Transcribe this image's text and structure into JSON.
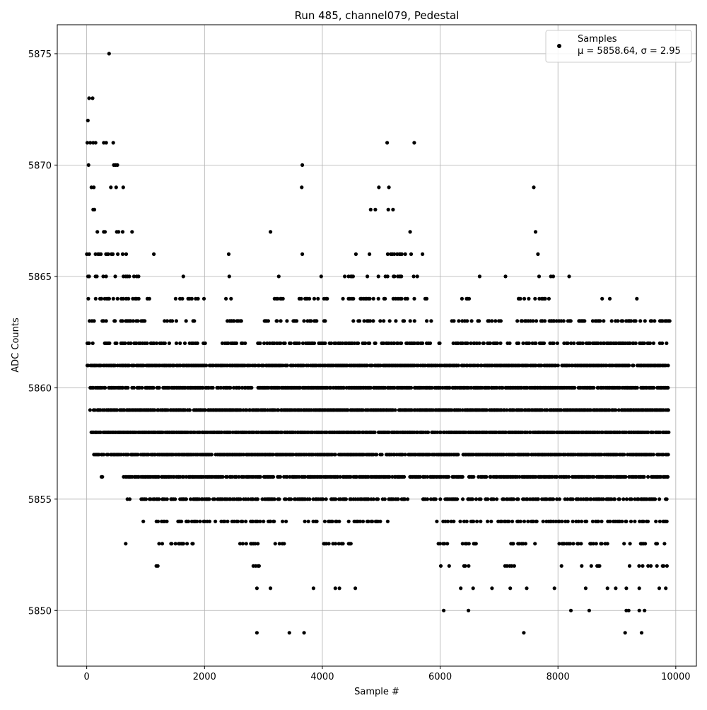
{
  "chart_data": {
    "type": "scatter",
    "title": "Run 485, channel079, Pedestal",
    "xlabel": "Sample #",
    "ylabel": "ADC Counts",
    "xlim": [
      -500,
      10350
    ],
    "ylim": [
      5847.5,
      5876.3
    ],
    "xticks": [
      0,
      2000,
      4000,
      6000,
      8000,
      10000
    ],
    "yticks": [
      5850,
      5855,
      5860,
      5865,
      5870,
      5875
    ],
    "grid": true,
    "legend": {
      "position": "top-right",
      "entries": [
        {
          "line1": "Samples",
          "line2": "μ = 5858.64, σ = 2.95"
        }
      ]
    },
    "marker_color": "#000000",
    "series": [
      {
        "name": "Samples",
        "points": [
          [
            380,
            5875
          ],
          [
            20,
            5872
          ],
          [
            40,
            5873
          ],
          [
            100,
            5873
          ],
          [
            30,
            5870
          ],
          [
            460,
            5870
          ],
          [
            490,
            5870
          ],
          [
            520,
            5870
          ],
          [
            3660,
            5870
          ],
          [
            5100,
            5871
          ],
          [
            5560,
            5871
          ],
          [
            10,
            5871
          ],
          [
            60,
            5871
          ],
          [
            110,
            5871
          ],
          [
            150,
            5871
          ],
          [
            290,
            5871
          ],
          [
            330,
            5871
          ],
          [
            450,
            5871
          ],
          [
            80,
            5869
          ],
          [
            120,
            5869
          ],
          [
            410,
            5869
          ],
          [
            500,
            5869
          ],
          [
            620,
            5869
          ],
          [
            3650,
            5869
          ],
          [
            4960,
            5869
          ],
          [
            5130,
            5869
          ],
          [
            7590,
            5869
          ],
          [
            110,
            5868
          ],
          [
            130,
            5868
          ],
          [
            4820,
            5868
          ],
          [
            4900,
            5868
          ],
          [
            5120,
            5868
          ],
          [
            5200,
            5868
          ],
          [
            180,
            5867
          ],
          [
            290,
            5867
          ],
          [
            310,
            5867
          ],
          [
            510,
            5867
          ],
          [
            540,
            5867
          ],
          [
            610,
            5867
          ],
          [
            770,
            5867
          ],
          [
            3120,
            5867
          ],
          [
            5490,
            5867
          ],
          [
            7620,
            5867
          ],
          [
            1140,
            5866
          ],
          [
            2410,
            5866
          ],
          [
            3660,
            5866
          ],
          [
            4570,
            5866
          ],
          [
            4800,
            5866
          ],
          [
            5700,
            5866
          ],
          [
            7660,
            5866
          ],
          [
            1640,
            5865
          ],
          [
            2420,
            5865
          ],
          [
            3260,
            5865
          ],
          [
            3980,
            5865
          ],
          [
            4380,
            5865
          ],
          [
            6670,
            5865
          ],
          [
            7110,
            5865
          ],
          [
            7680,
            5865
          ],
          [
            7880,
            5865
          ],
          [
            7920,
            5865
          ],
          [
            8190,
            5865
          ],
          [
            8750,
            5864
          ],
          [
            8880,
            5864
          ],
          [
            9340,
            5864
          ],
          [
            3690,
            5849
          ],
          [
            2890,
            5849
          ],
          [
            3440,
            5849
          ],
          [
            7420,
            5849
          ],
          [
            9140,
            5849
          ],
          [
            9420,
            5849
          ],
          [
            6060,
            5850
          ],
          [
            6480,
            5850
          ],
          [
            8220,
            5850
          ],
          [
            8530,
            5850
          ],
          [
            9160,
            5850
          ],
          [
            9200,
            5850
          ],
          [
            9380,
            5850
          ],
          [
            9470,
            5850
          ],
          [
            2890,
            5851
          ],
          [
            3120,
            5851
          ],
          [
            3850,
            5851
          ],
          [
            4220,
            5851
          ],
          [
            4290,
            5851
          ],
          [
            4560,
            5851
          ],
          [
            6350,
            5851
          ],
          [
            6560,
            5851
          ],
          [
            6880,
            5851
          ],
          [
            7190,
            5851
          ],
          [
            7470,
            5851
          ],
          [
            7940,
            5851
          ],
          [
            8470,
            5851
          ],
          [
            8840,
            5851
          ],
          [
            8980,
            5851
          ],
          [
            9160,
            5851
          ],
          [
            9380,
            5851
          ],
          [
            9720,
            5851
          ],
          [
            9830,
            5851
          ]
        ],
        "bands": [
          {
            "y": 5866,
            "segments": [
              [
                0,
                700
              ],
              [
                4660,
                4740
              ],
              [
                5100,
                5560
              ]
            ],
            "density": 0.35
          },
          {
            "y": 5865,
            "segments": [
              [
                0,
                900
              ],
              [
                4400,
                5700
              ]
            ],
            "density": 0.3
          },
          {
            "y": 5864,
            "segments": [
              [
                0,
                1100
              ],
              [
                1500,
                2000
              ],
              [
                2300,
                2450
              ],
              [
                3100,
                3400
              ],
              [
                3600,
                4100
              ],
              [
                4300,
                5800
              ],
              [
                6300,
                6500
              ],
              [
                7300,
                7850
              ]
            ],
            "density": 0.4
          },
          {
            "y": 5863,
            "segments": [
              [
                0,
                1000
              ],
              [
                1300,
                1900
              ],
              [
                2200,
                2700
              ],
              [
                2950,
                3400
              ],
              [
                3500,
                4050
              ],
              [
                4500,
                5850
              ],
              [
                6150,
                9900
              ]
            ],
            "density": 0.35
          },
          {
            "y": 5862,
            "segments": [
              [
                0,
                1400
              ],
              [
                1500,
                2050
              ],
              [
                2300,
                2700
              ],
              [
                2900,
                5850
              ],
              [
                5950,
                6100
              ],
              [
                6200,
                9850
              ]
            ],
            "density": 0.55
          },
          {
            "y": 5861,
            "segments": [
              [
                0,
                9870
              ]
            ],
            "density": 0.85
          },
          {
            "y": 5860,
            "segments": [
              [
                50,
                2800
              ],
              [
                2900,
                9870
              ]
            ],
            "density": 0.85
          },
          {
            "y": 5859,
            "segments": [
              [
                50,
                9870
              ]
            ],
            "density": 0.9
          },
          {
            "y": 5858,
            "segments": [
              [
                70,
                9870
              ]
            ],
            "density": 0.9
          },
          {
            "y": 5857,
            "segments": [
              [
                120,
                9870
              ]
            ],
            "density": 0.85
          },
          {
            "y": 5856,
            "segments": [
              [
                240,
                260
              ],
              [
                620,
                9870
              ]
            ],
            "density": 0.75
          },
          {
            "y": 5855,
            "segments": [
              [
                650,
                750
              ],
              [
                900,
                5450
              ],
              [
                5700,
                9870
              ]
            ],
            "density": 0.6
          },
          {
            "y": 5854,
            "segments": [
              [
                240,
                260
              ],
              [
                950,
                1000
              ],
              [
                1180,
                3400
              ],
              [
                3700,
                5100
              ],
              [
                5900,
                9870
              ]
            ],
            "density": 0.45
          },
          {
            "y": 5853,
            "segments": [
              [
                650,
                720
              ],
              [
                1200,
                1800
              ],
              [
                2600,
                3500
              ],
              [
                3800,
                4600
              ],
              [
                5950,
                6200
              ],
              [
                6300,
                6600
              ],
              [
                7200,
                7600
              ],
              [
                8000,
                9870
              ]
            ],
            "density": 0.3
          },
          {
            "y": 5852,
            "segments": [
              [
                1160,
                1220
              ],
              [
                2760,
                2950
              ],
              [
                5950,
                6150
              ],
              [
                6400,
                6600
              ],
              [
                7050,
                7300
              ],
              [
                8000,
                8100
              ],
              [
                8400,
                8700
              ],
              [
                9150,
                9850
              ]
            ],
            "density": 0.25
          }
        ]
      }
    ]
  }
}
